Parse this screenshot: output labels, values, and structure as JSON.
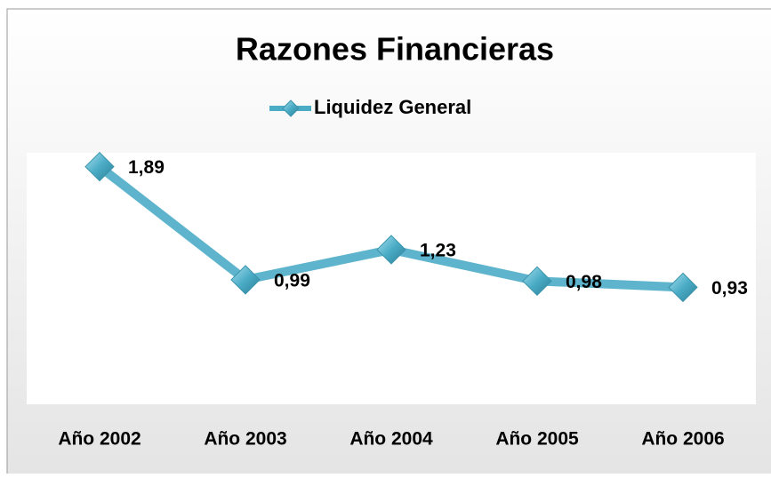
{
  "chart_data": {
    "type": "line",
    "title": "Razones Financieras",
    "categories": [
      "Año 2002",
      "Año 2003",
      "Año 2004",
      "Año 2005",
      "Año 2006"
    ],
    "series": [
      {
        "name": "Liquidez General",
        "color": "#4bacc6",
        "values": [
          1.89,
          0.99,
          1.23,
          0.98,
          0.93
        ],
        "value_labels": [
          "1,89",
          "0,99",
          "1,23",
          "0,98",
          "0,93"
        ]
      }
    ],
    "ylim": [
      0,
      2
    ],
    "legend": "top"
  }
}
